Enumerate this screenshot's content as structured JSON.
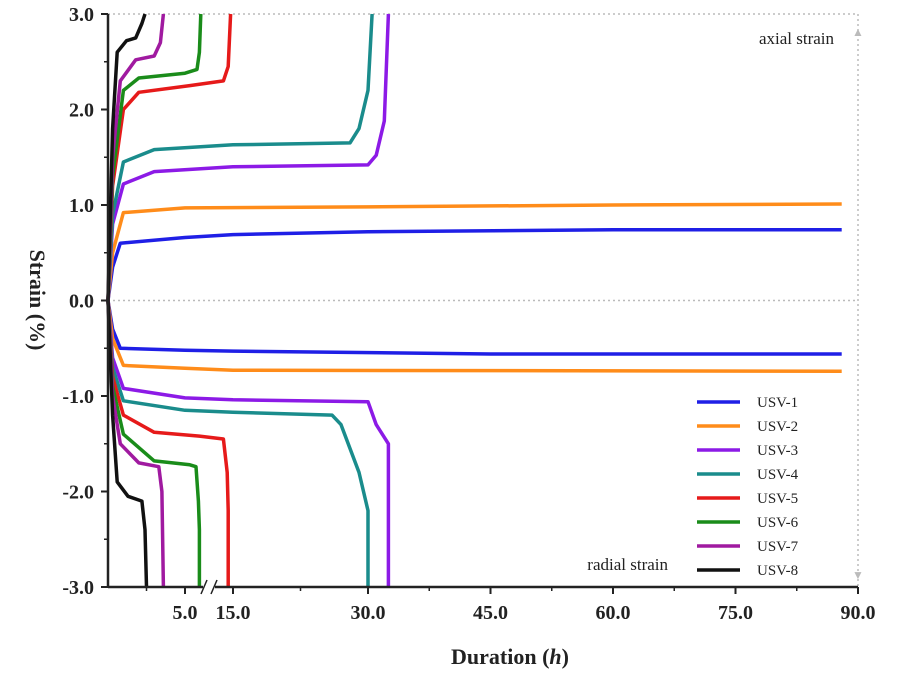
{
  "chart_data": {
    "type": "line",
    "title": "",
    "xlabel": "Duration (h)",
    "xlabel_main": "Duration (",
    "xlabel_italic": "h",
    "xlabel_close": ")",
    "ylabel": "Strain (%)",
    "xlim": [
      0,
      90
    ],
    "ylim": [
      -3,
      3
    ],
    "x_break": "axis break between 5.0 and 15.0",
    "x_ticks": [
      "5.0",
      "15.0",
      "30.0",
      "45.0",
      "60.0",
      "75.0",
      "90.0"
    ],
    "y_ticks": [
      "3.0",
      "2.0",
      "1.0",
      "0.0",
      "-1.0",
      "-2.0",
      "-3.0"
    ],
    "annotations": {
      "axial": "axial strain",
      "radial": "radial strain"
    },
    "legend_position": "bottom-right",
    "series": [
      {
        "name": "USV-1",
        "color": "#1f1fe6",
        "axial": [
          [
            0,
            0
          ],
          [
            0.3,
            0.35
          ],
          [
            0.8,
            0.6
          ],
          [
            5,
            0.66
          ],
          [
            15,
            0.69
          ],
          [
            30,
            0.72
          ],
          [
            60,
            0.74
          ],
          [
            88,
            0.74
          ]
        ],
        "radial": [
          [
            0,
            0
          ],
          [
            0.3,
            -0.3
          ],
          [
            0.8,
            -0.5
          ],
          [
            5,
            -0.52
          ],
          [
            15,
            -0.53
          ],
          [
            45,
            -0.56
          ],
          [
            88,
            -0.56
          ]
        ]
      },
      {
        "name": "USV-2",
        "color": "#ff8c1a",
        "axial": [
          [
            0,
            0
          ],
          [
            0.3,
            0.5
          ],
          [
            1,
            0.92
          ],
          [
            5,
            0.97
          ],
          [
            30,
            0.98
          ],
          [
            60,
            1.0
          ],
          [
            88,
            1.01
          ]
        ],
        "radial": [
          [
            0,
            0
          ],
          [
            0.3,
            -0.4
          ],
          [
            1,
            -0.68
          ],
          [
            5,
            -0.71
          ],
          [
            15,
            -0.73
          ],
          [
            88,
            -0.74
          ]
        ]
      },
      {
        "name": "USV-3",
        "color": "#8c1ae6",
        "axial": [
          [
            0,
            0
          ],
          [
            0.3,
            0.8
          ],
          [
            1,
            1.22
          ],
          [
            3,
            1.35
          ],
          [
            15,
            1.4
          ],
          [
            30,
            1.42
          ],
          [
            31,
            1.52
          ],
          [
            32,
            1.88
          ],
          [
            32.5,
            3.0
          ]
        ],
        "radial": [
          [
            0,
            0
          ],
          [
            0.3,
            -0.6
          ],
          [
            1,
            -0.92
          ],
          [
            5,
            -1.02
          ],
          [
            15,
            -1.04
          ],
          [
            30,
            -1.06
          ],
          [
            31,
            -1.3
          ],
          [
            32.5,
            -1.5
          ],
          [
            32.5,
            -3.0
          ]
        ]
      },
      {
        "name": "USV-4",
        "color": "#1a8c8c",
        "axial": [
          [
            0,
            0
          ],
          [
            0.3,
            0.9
          ],
          [
            1,
            1.45
          ],
          [
            3,
            1.58
          ],
          [
            15,
            1.63
          ],
          [
            28,
            1.65
          ],
          [
            29,
            1.8
          ],
          [
            30,
            2.2
          ],
          [
            30.5,
            3.0
          ]
        ],
        "radial": [
          [
            0,
            0
          ],
          [
            0.3,
            -0.7
          ],
          [
            1,
            -1.05
          ],
          [
            5,
            -1.15
          ],
          [
            15,
            -1.17
          ],
          [
            26,
            -1.2
          ],
          [
            27,
            -1.3
          ],
          [
            29,
            -1.8
          ],
          [
            30,
            -2.2
          ],
          [
            30,
            -3.0
          ]
        ]
      },
      {
        "name": "USV-5",
        "color": "#e61a1a",
        "axial": [
          [
            0,
            0
          ],
          [
            0.3,
            1.2
          ],
          [
            1,
            2.0
          ],
          [
            2,
            2.18
          ],
          [
            6,
            2.25
          ],
          [
            13,
            2.3
          ],
          [
            14,
            2.45
          ],
          [
            14.5,
            3.0
          ]
        ],
        "radial": [
          [
            0,
            0
          ],
          [
            0.3,
            -0.8
          ],
          [
            1,
            -1.2
          ],
          [
            3,
            -1.38
          ],
          [
            8,
            -1.42
          ],
          [
            13,
            -1.45
          ],
          [
            13.8,
            -1.8
          ],
          [
            14,
            -2.2
          ],
          [
            14,
            -3.0
          ]
        ]
      },
      {
        "name": "USV-6",
        "color": "#1a8c1a",
        "axial": [
          [
            0,
            0
          ],
          [
            0.3,
            1.3
          ],
          [
            1,
            2.2
          ],
          [
            2,
            2.33
          ],
          [
            5,
            2.38
          ],
          [
            7.5,
            2.42
          ],
          [
            8,
            2.6
          ],
          [
            8.3,
            3.0
          ]
        ],
        "radial": [
          [
            0,
            0
          ],
          [
            0.3,
            -0.9
          ],
          [
            1,
            -1.4
          ],
          [
            3,
            -1.68
          ],
          [
            6,
            -1.72
          ],
          [
            7.3,
            -1.74
          ],
          [
            7.8,
            -2.1
          ],
          [
            8,
            -2.4
          ],
          [
            8,
            -3.0
          ]
        ]
      },
      {
        "name": "USV-7",
        "color": "#a01aa0",
        "axial": [
          [
            0,
            0
          ],
          [
            0.3,
            1.5
          ],
          [
            0.8,
            2.3
          ],
          [
            1.8,
            2.52
          ],
          [
            3,
            2.56
          ],
          [
            3.4,
            2.7
          ],
          [
            3.6,
            3.0
          ]
        ],
        "radial": [
          [
            0,
            0
          ],
          [
            0.3,
            -1.0
          ],
          [
            0.8,
            -1.5
          ],
          [
            2,
            -1.7
          ],
          [
            3.3,
            -1.74
          ],
          [
            3.5,
            -2.0
          ],
          [
            3.6,
            -3.0
          ]
        ]
      },
      {
        "name": "USV-8",
        "color": "#111111",
        "axial": [
          [
            0,
            0
          ],
          [
            0.3,
            1.8
          ],
          [
            0.6,
            2.6
          ],
          [
            1.2,
            2.72
          ],
          [
            1.8,
            2.75
          ],
          [
            2.2,
            2.9
          ],
          [
            2.4,
            3.0
          ]
        ],
        "radial": [
          [
            0,
            0
          ],
          [
            0.3,
            -1.2
          ],
          [
            0.6,
            -1.9
          ],
          [
            1.3,
            -2.05
          ],
          [
            2.2,
            -2.1
          ],
          [
            2.4,
            -2.4
          ],
          [
            2.5,
            -3.0
          ]
        ]
      }
    ]
  }
}
